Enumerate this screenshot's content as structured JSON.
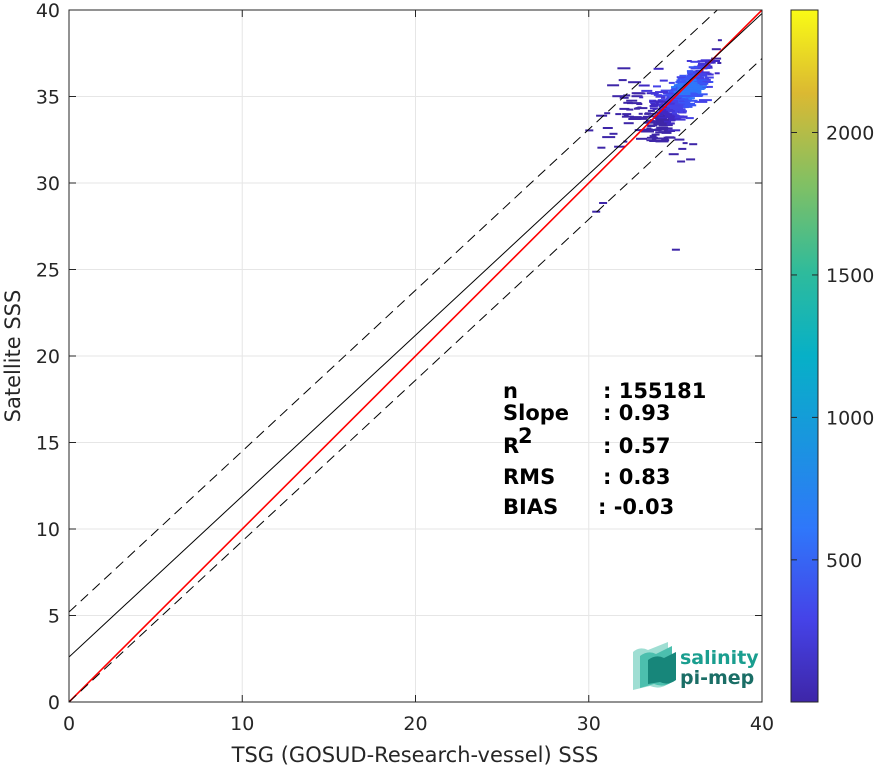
{
  "chart_data": {
    "type": "heatmap",
    "xlabel": "TSG (GOSUD-Research-vessel) SSS",
    "ylabel": "Satellite SSS",
    "xlim": [
      0,
      40
    ],
    "ylim": [
      0,
      40
    ],
    "xticks": [
      0,
      10,
      20,
      30,
      40
    ],
    "yticks": [
      0,
      5,
      10,
      15,
      20,
      25,
      30,
      35,
      40
    ],
    "grid": true,
    "colorbar": {
      "range": [
        1,
        2430
      ],
      "ticks": [
        500,
        1000,
        1500,
        2000
      ],
      "colormap": "parula"
    },
    "lines": [
      {
        "name": "1:1",
        "x": [
          0,
          40
        ],
        "y": [
          0,
          40
        ],
        "color": "#ff0000",
        "style": "solid"
      },
      {
        "name": "fit",
        "x": [
          0,
          40
        ],
        "y": [
          2.6,
          39.8
        ],
        "color": "#000000",
        "style": "solid"
      },
      {
        "name": "upper",
        "x": [
          0,
          40
        ],
        "y": [
          5.2,
          42.4
        ],
        "color": "#000000",
        "style": "dashed"
      },
      {
        "name": "lower",
        "x": [
          0,
          40
        ],
        "y": [
          0.0,
          37.2
        ],
        "color": "#000000",
        "style": "dashed"
      }
    ],
    "density_region": {
      "x_range": [
        29.5,
        37.5
      ],
      "y_range": [
        26,
        38.5
      ],
      "center": [
        35.5,
        35.5
      ]
    },
    "stats": [
      {
        "label": "n",
        "value": ": 155181"
      },
      {
        "label": "Slope",
        "value": ": 0.93"
      },
      {
        "label": "R",
        "sup": "2",
        "value": ": 0.57"
      },
      {
        "label": "RMS",
        "value": ": 0.83"
      },
      {
        "label": "BIAS",
        "value": ": -0.03"
      }
    ]
  },
  "logo": {
    "line1": "salinity",
    "line2": "pi-mep"
  },
  "colors": {
    "fit": "#000000",
    "identity": "#ff0000",
    "logo": "#1a9e8f"
  }
}
